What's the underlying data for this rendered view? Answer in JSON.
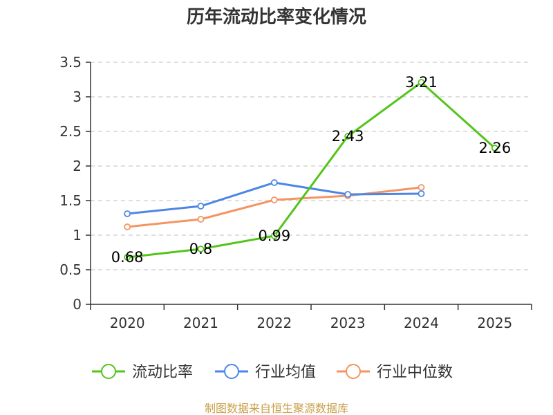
{
  "chart_data": {
    "type": "line",
    "title": "历年流动比率变化情况",
    "categories": [
      "2020",
      "2021",
      "2022",
      "2023",
      "2024",
      "2025"
    ],
    "ylim": [
      0,
      3.5
    ],
    "yticks": [
      "0",
      "0.5",
      "1",
      "1.5",
      "2",
      "2.5",
      "3",
      "3.5"
    ],
    "grid": true,
    "legend_position": "bottom",
    "series": [
      {
        "name": "流动比率",
        "color": "#52c41a",
        "values": [
          0.68,
          0.8,
          0.99,
          2.43,
          3.21,
          2.26
        ],
        "labels": [
          "0.68",
          "0.8",
          "0.99",
          "2.43",
          "3.21",
          "2.26"
        ]
      },
      {
        "name": "行业均值",
        "color": "#4a86e8",
        "values": [
          1.31,
          1.42,
          1.76,
          1.59,
          1.6,
          null
        ]
      },
      {
        "name": "行业中位数",
        "color": "#f59361",
        "values": [
          1.12,
          1.23,
          1.51,
          1.57,
          1.69,
          null
        ]
      }
    ],
    "source": "制图数据来自恒生聚源数据库"
  }
}
